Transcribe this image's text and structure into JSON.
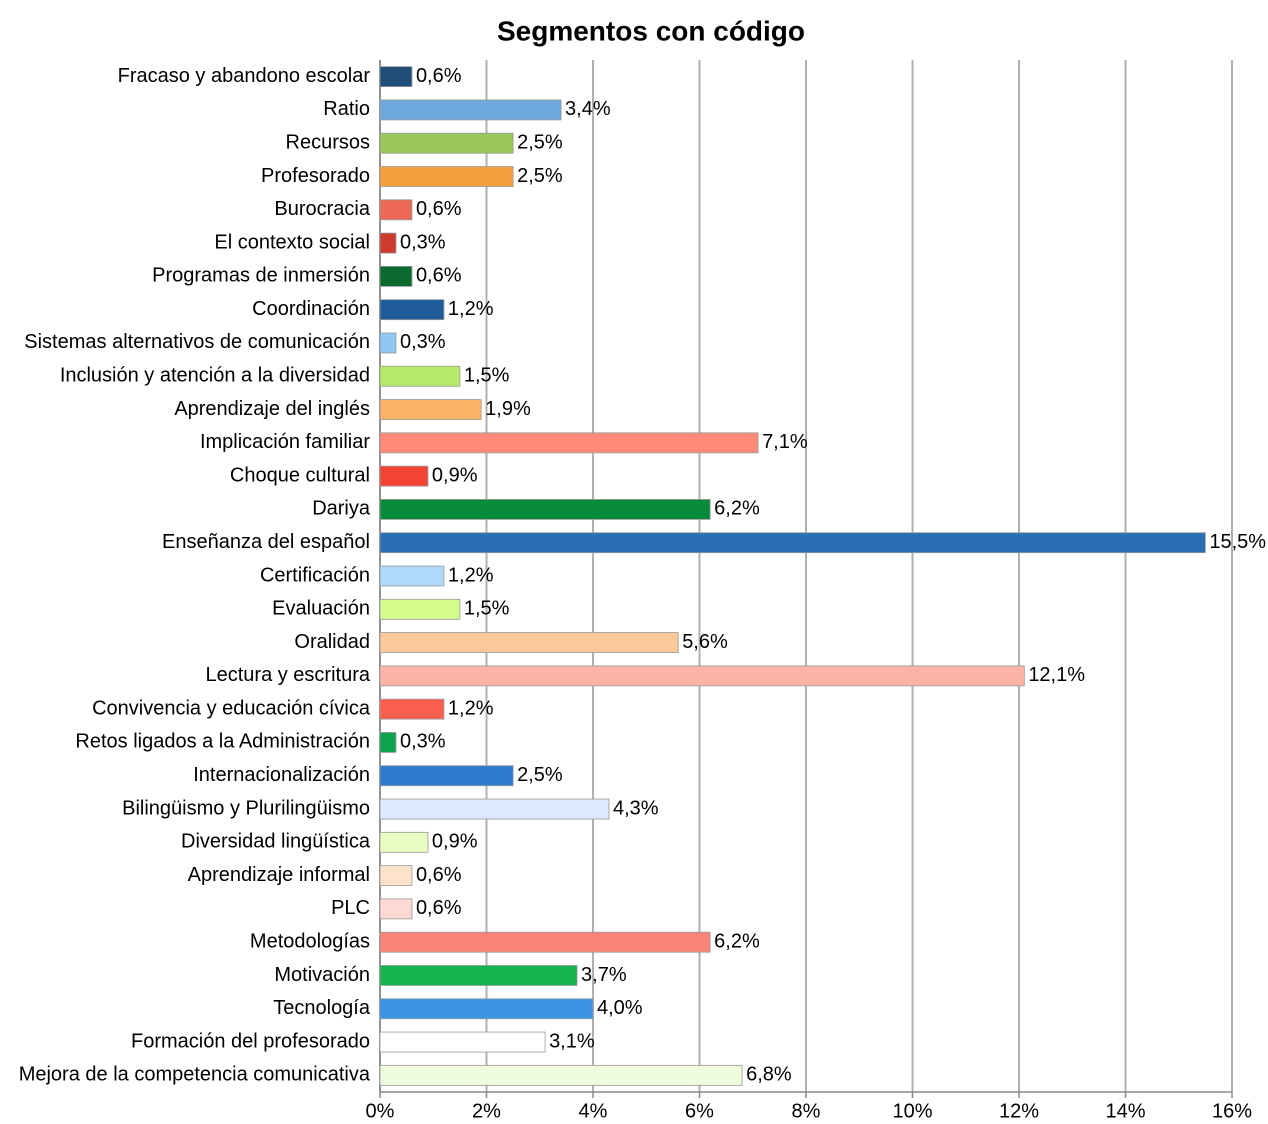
{
  "chart_data": {
    "type": "bar",
    "orientation": "horizontal",
    "title": "Segmentos con código",
    "categories": [
      "Fracaso y abandono escolar",
      "Ratio",
      "Recursos",
      "Profesorado",
      "Burocracia",
      "El contexto social",
      "Programas de inmersión",
      "Coordinación",
      "Sistemas alternativos de comunicación",
      "Inclusión y atención a la diversidad",
      "Aprendizaje del inglés",
      "Implicación familiar",
      "Choque cultural",
      "Dariya",
      "Enseñanza del español",
      "Certificación",
      "Evaluación",
      "Oralidad",
      "Lectura y escritura",
      "Convivencia y educación cívica",
      "Retos ligados a la Administración",
      "Internacionalización",
      "Bilingüismo y Plurilingüismo",
      "Diversidad lingüística",
      "Aprendizaje informal",
      "PLC",
      "Metodologías",
      "Motivación",
      "Tecnología",
      "Formación del profesorado",
      "Mejora de la competencia comunicativa"
    ],
    "values": [
      0.6,
      3.4,
      2.5,
      2.5,
      0.6,
      0.3,
      0.6,
      1.2,
      0.3,
      1.5,
      1.9,
      7.1,
      0.9,
      6.2,
      15.5,
      1.2,
      1.5,
      5.6,
      12.1,
      1.2,
      0.3,
      2.5,
      4.3,
      0.9,
      0.6,
      0.6,
      6.2,
      3.7,
      4.0,
      3.1,
      6.8
    ],
    "value_labels": [
      "0,6%",
      "3,4%",
      "2,5%",
      "2,5%",
      "0,6%",
      "0,3%",
      "0,6%",
      "1,2%",
      "0,3%",
      "1,5%",
      "1,9%",
      "7,1%",
      "0,9%",
      "6,2%",
      "15,5%",
      "1,2%",
      "1,5%",
      "5,6%",
      "12,1%",
      "1,2%",
      "0,3%",
      "2,5%",
      "4,3%",
      "0,9%",
      "0,6%",
      "0,6%",
      "6,2%",
      "3,7%",
      "4,0%",
      "3,1%",
      "6,8%"
    ],
    "colors": [
      "#1f4e79",
      "#6fa8dc",
      "#9bc85a",
      "#f4a040",
      "#ec6a55",
      "#cc3b2b",
      "#0b6b2f",
      "#1f5c99",
      "#8fc7f5",
      "#b8ea6a",
      "#fbb36a",
      "#ff8a78",
      "#f44333",
      "#078a3a",
      "#2a6fb5",
      "#b0d8fb",
      "#d4fc8c",
      "#fdc99a",
      "#fdb3a6",
      "#fa5e4c",
      "#0ea34a",
      "#2e7bcf",
      "#dbeafd",
      "#e9fdc0",
      "#fee3cc",
      "#fed9d3",
      "#fa8478",
      "#14b44f",
      "#3b94e6",
      "#ffffff",
      "#eefddc"
    ],
    "xlim": [
      0,
      16
    ],
    "xticks": [
      {
        "value": 0,
        "label": "0%"
      },
      {
        "value": 2,
        "label": "2%"
      },
      {
        "value": 4,
        "label": "4%"
      },
      {
        "value": 6,
        "label": "6%"
      },
      {
        "value": 8,
        "label": "8%"
      },
      {
        "value": 10,
        "label": "10%"
      },
      {
        "value": 12,
        "label": "12%"
      },
      {
        "value": 14,
        "label": "14%"
      },
      {
        "value": 16,
        "label": "16%"
      }
    ],
    "grid": true
  }
}
